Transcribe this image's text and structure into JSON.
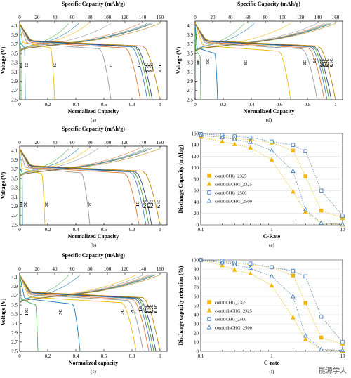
{
  "chart_data": [
    {
      "id": "a",
      "type": "line",
      "caption": "(a)",
      "title": "Specific Capacity (mAh/g)",
      "xlabel": "Normalized Capacity",
      "ylabel": "Voltage (V)",
      "xlim": [
        0,
        1.05
      ],
      "ylim": [
        2.5,
        4.2
      ],
      "x2lim": [
        0,
        168
      ],
      "xticks": [
        0,
        0.2,
        0.4,
        0.6,
        0.8,
        1
      ],
      "x2ticks": [
        0,
        20,
        40,
        60,
        80,
        100,
        120,
        140,
        160
      ],
      "yticks": [
        2.5,
        2.7,
        2.9,
        3.1,
        3.3,
        3.5,
        3.7,
        3.9,
        4.1
      ],
      "xtick_labels": [
        "0",
        "0.2",
        "0.4",
        "0.6",
        "0.8",
        "1"
      ],
      "x2tick_labels": [
        "0",
        "20",
        "40",
        "60",
        "80",
        "100",
        "120",
        "140",
        "160"
      ],
      "ytick_labels": [
        "2.5",
        "2.7",
        "2.9",
        "3.1",
        "3.3",
        "3.5",
        "3.7",
        "3.9",
        "4.1"
      ],
      "series": [
        {
          "name": "10C",
          "color": "#4cb050",
          "end": 0.01,
          "drop": 3.6,
          "label_xy": [
            0.02,
            3.25
          ]
        },
        {
          "name": "5C",
          "color": "#1f77b4",
          "end": 0.04,
          "drop": 3.62,
          "label_xy": [
            0.06,
            3.25
          ]
        },
        {
          "name": "3C",
          "color": "#f2b705",
          "end": 0.25,
          "drop": 3.62,
          "label_xy": [
            0.26,
            3.25
          ]
        },
        {
          "name": "2C",
          "color": "#999999",
          "end": 0.65,
          "drop": 3.6,
          "label_xy": [
            0.66,
            3.25
          ]
        },
        {
          "name": "1C",
          "color": "#e07b39",
          "end": 0.86,
          "drop": 3.62,
          "label_xy": [
            0.86,
            3.25
          ]
        },
        {
          "name": "0.5C",
          "color": "#4a7fbf",
          "end": 0.91,
          "drop": 3.64,
          "label_xy": [
            0.91,
            3.2
          ]
        },
        {
          "name": "0.3C",
          "color": "#5aa02c",
          "end": 0.93,
          "drop": 3.65,
          "label_xy": [
            0.93,
            3.2
          ]
        },
        {
          "name": "0.2C",
          "color": "#2e4a7d",
          "end": 0.945,
          "drop": 3.65,
          "label_xy": [
            0.95,
            3.2
          ]
        },
        {
          "name": "0.1C",
          "color": "#b8860b",
          "end": 1.0,
          "drop": 3.66,
          "label_xy": [
            1.01,
            3.2
          ]
        }
      ]
    },
    {
      "id": "d",
      "type": "line",
      "caption": "(d)",
      "title": "Specific Capacity (mAh/g)",
      "xlabel": "Normalized Capacity",
      "ylabel": "Voltage (V)",
      "xlim": [
        0,
        1.05
      ],
      "ylim": [
        2.5,
        4.2
      ],
      "x2lim": [
        0,
        168
      ],
      "xticks": [
        0,
        0.2,
        0.4,
        0.6,
        0.8,
        1
      ],
      "x2ticks": [
        0,
        20,
        40,
        60,
        80,
        100,
        120,
        140,
        160
      ],
      "yticks": [
        2.5,
        2.7,
        2.9,
        3.1,
        3.3,
        3.5,
        3.7,
        3.9,
        4.1
      ],
      "xtick_labels": [
        "0",
        "0.2",
        "0.4",
        "0.6",
        "0.8",
        "1"
      ],
      "x2tick_labels": [
        "0",
        "20",
        "40",
        "60",
        "80",
        "100",
        "120",
        "140",
        "160"
      ],
      "ytick_labels": [
        "2.5",
        "2.7",
        "2.9",
        "3.1",
        "3.3",
        "3.5",
        "3.7",
        "3.9",
        "4.1"
      ],
      "series": [
        {
          "name": "10C",
          "color": "#4cb050",
          "end": 0.04,
          "drop": 3.45,
          "label_xy": [
            0.03,
            3.33
          ]
        },
        {
          "name": "5C",
          "color": "#1f77b4",
          "end": 0.16,
          "drop": 3.5,
          "label_xy": [
            0.1,
            3.33
          ]
        },
        {
          "name": "3C",
          "color": "#f2b705",
          "end": 0.68,
          "drop": 3.55,
          "label_xy": [
            0.37,
            3.3
          ]
        },
        {
          "name": "2C",
          "color": "#999999",
          "end": 0.87,
          "drop": 3.6,
          "label_xy": [
            0.79,
            3.3
          ]
        },
        {
          "name": "1C",
          "color": "#e07b39",
          "end": 0.92,
          "drop": 3.62,
          "label_xy": [
            0.86,
            3.35
          ]
        },
        {
          "name": "0.5C",
          "color": "#4a7fbf",
          "end": 0.94,
          "drop": 3.64,
          "label_xy": [
            0.91,
            3.3
          ]
        },
        {
          "name": "0.3C",
          "color": "#5aa02c",
          "end": 0.955,
          "drop": 3.65,
          "label_xy": [
            0.93,
            3.3
          ]
        },
        {
          "name": "0.2C",
          "color": "#2e4a7d",
          "end": 0.97,
          "drop": 3.65,
          "label_xy": [
            0.95,
            3.3
          ]
        },
        {
          "name": "0.1C",
          "color": "#b8860b",
          "end": 1.0,
          "drop": 3.66,
          "label_xy": [
            0.98,
            3.3
          ]
        }
      ]
    },
    {
      "id": "b",
      "type": "line",
      "caption": "(b)",
      "title": "Specific Capacity (mAh/g)",
      "xlabel": "Normalized Capacity",
      "ylabel": "Voltage (V)",
      "xlim": [
        0,
        1.05
      ],
      "ylim": [
        2.5,
        4.2
      ],
      "x2lim": [
        0,
        168
      ],
      "xticks": [
        0,
        0.2,
        0.4,
        0.6,
        0.8,
        1
      ],
      "x2ticks": [
        0,
        20,
        40,
        60,
        80,
        100,
        120,
        140,
        160
      ],
      "yticks": [
        2.5,
        2.7,
        2.9,
        3.1,
        3.3,
        3.5,
        3.7,
        3.9,
        4.1
      ],
      "xtick_labels": [
        "0",
        "0.2",
        "0.4",
        "0.6",
        "0.8",
        "1"
      ],
      "x2tick_labels": [
        "0",
        "20",
        "40",
        "60",
        "80",
        "100",
        "120",
        "140",
        "160"
      ],
      "ytick_labels": [
        "2.5",
        "2.7",
        "2.9",
        "3.1",
        "3.3",
        "3.5",
        "3.7",
        "3.9",
        "4.1"
      ],
      "series": [
        {
          "name": "10C",
          "color": "#4cb050",
          "end": 0.005,
          "drop": 3.6,
          "label_xy": [
            0.02,
            2.95
          ]
        },
        {
          "name": "5C",
          "color": "#1f77b4",
          "end": 0.02,
          "drop": 3.62,
          "label_xy": [
            0.05,
            2.95
          ]
        },
        {
          "name": "3C",
          "color": "#f2b705",
          "end": 0.18,
          "drop": 3.6,
          "label_xy": [
            0.2,
            2.95
          ]
        },
        {
          "name": "2C",
          "color": "#999999",
          "end": 0.5,
          "drop": 3.62,
          "label_xy": [
            0.51,
            2.95
          ]
        },
        {
          "name": "1C",
          "color": "#e07b39",
          "end": 0.85,
          "drop": 3.62,
          "label_xy": [
            0.85,
            2.95
          ]
        },
        {
          "name": "0.5C",
          "color": "#4a7fbf",
          "end": 0.9,
          "drop": 3.64,
          "label_xy": [
            0.9,
            2.95
          ]
        },
        {
          "name": "0.3C",
          "color": "#5aa02c",
          "end": 0.92,
          "drop": 3.65,
          "label_xy": [
            0.93,
            2.95
          ]
        },
        {
          "name": "0.2C",
          "color": "#2e4a7d",
          "end": 0.94,
          "drop": 3.65,
          "label_xy": [
            0.95,
            2.95
          ]
        },
        {
          "name": "0.1C",
          "color": "#b8860b",
          "end": 1.0,
          "drop": 3.66,
          "label_xy": [
            1.0,
            2.95
          ]
        }
      ]
    },
    {
      "id": "c",
      "type": "line",
      "caption": "(c)",
      "title": "Specific Capacity (mAh/g)",
      "xlabel": "Normalized capacity",
      "ylabel": "Voltage [V]",
      "xlim": [
        0,
        1.05
      ],
      "ylim": [
        2.5,
        4.2
      ],
      "x2lim": [
        0,
        168
      ],
      "xticks": [
        0,
        0.2,
        0.4,
        0.6,
        0.8,
        1
      ],
      "x2ticks": [
        0,
        20,
        40,
        60,
        80,
        100,
        120,
        140,
        160
      ],
      "yticks": [
        2.5,
        2.7,
        2.9,
        3.1,
        3.3,
        3.5,
        3.7,
        3.9,
        4.1
      ],
      "xtick_labels": [
        "0",
        "0.2",
        "0.4",
        "0.6",
        "0.8",
        "1"
      ],
      "x2tick_labels": [
        "0",
        "20",
        "40",
        "60",
        "80",
        "100",
        "120",
        "140",
        "160"
      ],
      "ytick_labels": [
        "2.5",
        "2.7",
        "2.9",
        "3.1",
        "3.3",
        "3.5",
        "3.7",
        "3.9",
        "4.1"
      ],
      "series": [
        {
          "name": "10C",
          "color": "#4cb050",
          "end": 0.13,
          "drop": 3.5,
          "label_xy": [
            0.06,
            3.35
          ]
        },
        {
          "name": "5C",
          "color": "#1f77b4",
          "end": 0.43,
          "drop": 3.52,
          "label_xy": [
            0.3,
            3.35
          ]
        },
        {
          "name": "3C",
          "color": "#f2b705",
          "end": 0.83,
          "drop": 3.55,
          "label_xy": [
            0.74,
            3.35
          ]
        },
        {
          "name": "2C",
          "color": "#999999",
          "end": 0.88,
          "drop": 3.6,
          "label_xy": [
            0.81,
            3.38
          ]
        },
        {
          "name": "1C",
          "color": "#e07b39",
          "end": 0.92,
          "drop": 3.62,
          "label_xy": [
            0.87,
            3.42
          ]
        },
        {
          "name": "0.5C",
          "color": "#4a7fbf",
          "end": 0.94,
          "drop": 3.64,
          "label_xy": [
            0.91,
            3.42
          ]
        },
        {
          "name": "0.3C",
          "color": "#5aa02c",
          "end": 0.955,
          "drop": 3.65,
          "label_xy": [
            0.93,
            3.42
          ]
        },
        {
          "name": "0.2C",
          "color": "#2e4a7d",
          "end": 0.97,
          "drop": 3.65,
          "label_xy": [
            0.95,
            3.42
          ]
        },
        {
          "name": "0.1C",
          "color": "#b8860b",
          "end": 1.0,
          "drop": 3.66,
          "label_xy": [
            0.98,
            3.42
          ]
        }
      ]
    },
    {
      "id": "e",
      "type": "scatter",
      "caption": "(e)",
      "xlabel": "C-Rate",
      "ylabel": "Discharge Capacity (mAh/g)",
      "xscale": "log",
      "xlim": [
        0.1,
        10
      ],
      "ylim": [
        0,
        160
      ],
      "xticks": [
        0.1,
        1,
        10
      ],
      "xtick_labels": [
        "0.1",
        "1",
        "10"
      ],
      "yticks": [
        0,
        20,
        40,
        60,
        80,
        100,
        120,
        140,
        160
      ],
      "ytick_labels": [
        "0",
        "20",
        "40",
        "60",
        "80",
        "100",
        "120",
        "140",
        "160"
      ],
      "x": [
        0.1,
        0.2,
        0.3,
        0.5,
        1,
        2,
        3,
        5,
        10
      ],
      "legend_position": "center-left",
      "series": [
        {
          "name": "const CHG_2325",
          "color": "#f2b705",
          "marker": "square",
          "filled": true,
          "values": [
            157,
            154,
            151,
            149,
            144,
            130,
            85,
            25,
            12
          ]
        },
        {
          "name": "const disCHG_2325",
          "color": "#f2b705",
          "marker": "triangle",
          "filled": true,
          "values": [
            154,
            146,
            141,
            135,
            114,
            58,
            23,
            3,
            0
          ]
        },
        {
          "name": "const CHG_2500",
          "color": "#4a7fbf",
          "marker": "square",
          "filled": false,
          "values": [
            159,
            157,
            155,
            153,
            146,
            140,
            129,
            60,
            16
          ]
        },
        {
          "name": "const disCHG_2500",
          "color": "#4a7fbf",
          "marker": "triangle",
          "filled": false,
          "values": [
            157,
            153,
            150,
            145,
            130,
            94,
            27,
            3,
            1
          ]
        }
      ]
    },
    {
      "id": "f",
      "type": "scatter",
      "caption": "(f)",
      "xlabel": "C-rate",
      "ylabel": "Discharge capacity retention (%)",
      "xscale": "log",
      "xlim": [
        0.1,
        10
      ],
      "ylim": [
        0,
        100
      ],
      "xticks": [
        0.1,
        1,
        10
      ],
      "xtick_labels": [
        "0.1",
        "1",
        "10"
      ],
      "yticks": [
        0,
        10,
        20,
        30,
        40,
        50,
        60,
        70,
        80,
        90,
        100
      ],
      "ytick_labels": [
        "0",
        "10",
        "20",
        "30",
        "40",
        "50",
        "60",
        "70",
        "80",
        "90",
        "100"
      ],
      "x": [
        0.1,
        0.2,
        0.3,
        0.5,
        1,
        2,
        3,
        5,
        10
      ],
      "legend_position": "center-left",
      "series": [
        {
          "name": "const CHG_2325",
          "color": "#f2b705",
          "marker": "square",
          "filled": true,
          "values": [
            100,
            98,
            96,
            95,
            92,
            83,
            53,
            15,
            8
          ]
        },
        {
          "name": "const disCHG_2325",
          "color": "#f2b705",
          "marker": "triangle",
          "filled": true,
          "values": [
            100,
            94,
            89,
            85,
            72,
            37,
            13,
            2,
            0
          ]
        },
        {
          "name": "const CHG_2500",
          "color": "#4a7fbf",
          "marker": "square",
          "filled": false,
          "values": [
            100,
            99,
            97,
            96,
            92,
            88,
            82,
            38,
            10
          ]
        },
        {
          "name": "const disCHG_2500",
          "color": "#4a7fbf",
          "marker": "triangle",
          "filled": false,
          "values": [
            100,
            97,
            95,
            91,
            82,
            60,
            17,
            2,
            1
          ]
        }
      ]
    }
  ],
  "watermark": "能源学人"
}
